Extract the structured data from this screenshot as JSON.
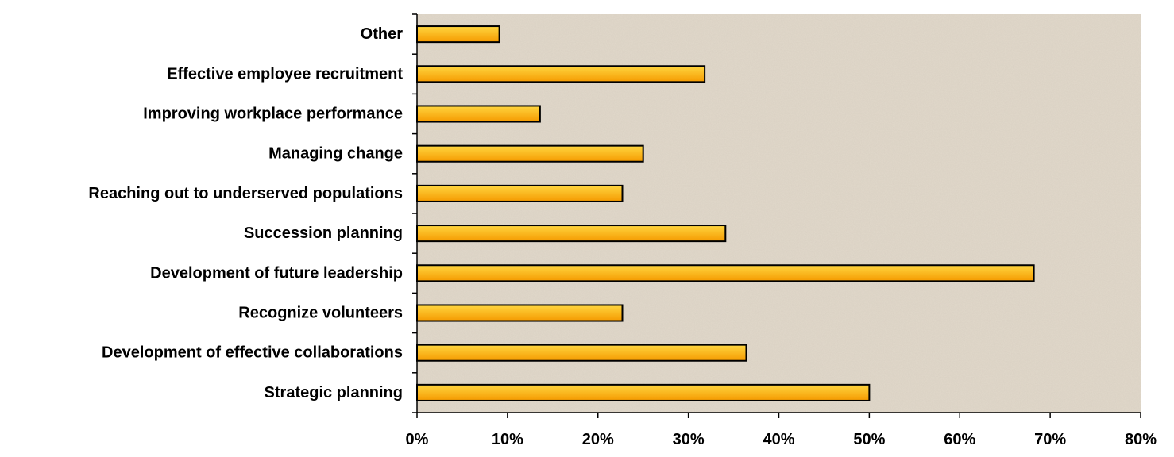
{
  "chart_data": {
    "type": "bar",
    "orientation": "horizontal",
    "categories": [
      "Other",
      "Effective employee recruitment",
      "Improving workplace performance",
      "Managing change",
      "Reaching out to underserved populations",
      "Succession planning",
      "Development of future leadership",
      "Recognize volunteers",
      "Development of effective collaborations",
      "Strategic planning"
    ],
    "values": [
      9.1,
      31.8,
      13.6,
      25.0,
      22.7,
      34.1,
      68.2,
      22.7,
      36.4,
      50.0
    ],
    "xlim": [
      0,
      80
    ],
    "xticks": [
      "0%",
      "10%",
      "20%",
      "30%",
      "40%",
      "50%",
      "60%",
      "70%",
      "80%"
    ],
    "title": "",
    "xlabel": "",
    "ylabel": "",
    "grid": false,
    "legend": "none",
    "colors": {
      "plot_background": "#e2d9cb",
      "bar_top": "#ffd640",
      "bar_bottom": "#f59a00",
      "bar_stroke": "#000000"
    }
  }
}
